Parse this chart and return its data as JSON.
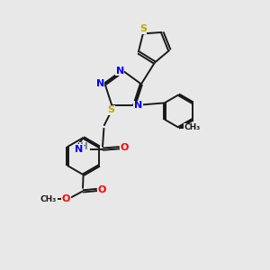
{
  "bg_color": "#e8e8e8",
  "bond_color": "#1a1a1a",
  "n_color": "#0000ff",
  "s_color": "#bbaa00",
  "o_color": "#ff0000",
  "h_color": "#708090",
  "lw": 1.4,
  "fig_size": [
    3.0,
    3.0
  ],
  "dpi": 100,
  "xlim": [
    0,
    10
  ],
  "ylim": [
    0,
    10
  ]
}
